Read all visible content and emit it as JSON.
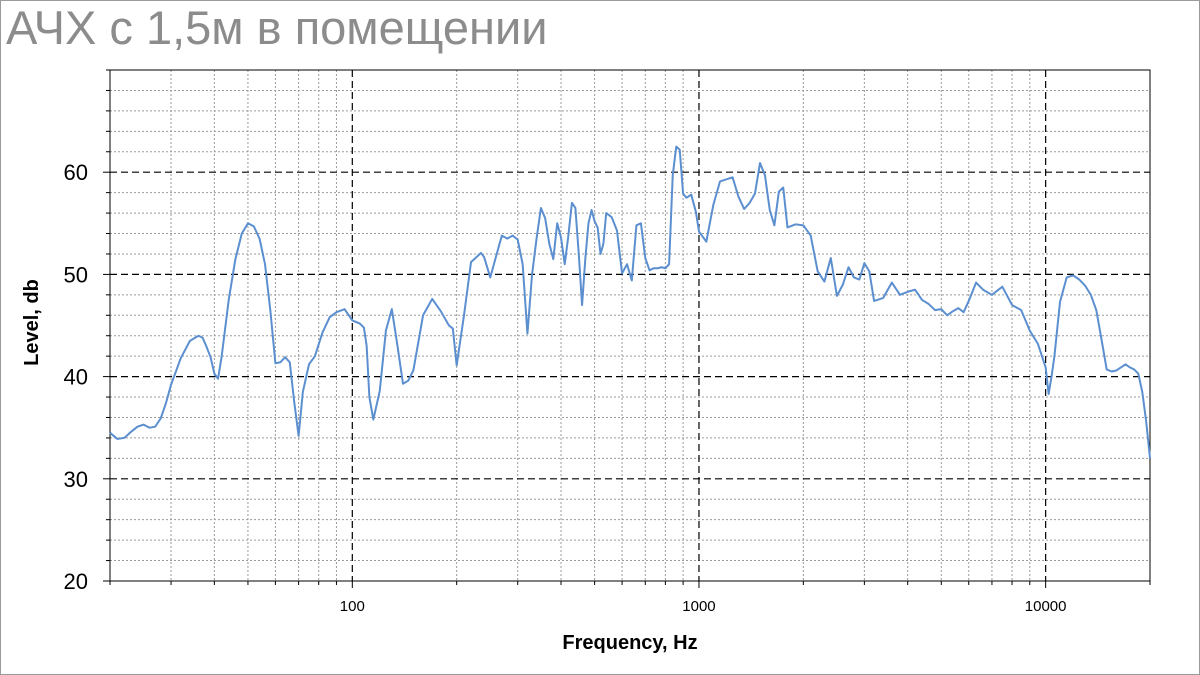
{
  "chart_data": {
    "type": "line",
    "title": "АЧХ с 1,5м в помещении",
    "xlabel": "Frequency, Hz",
    "ylabel": "Level, db",
    "xscale": "log",
    "xlim": [
      20,
      20000
    ],
    "ylim": [
      20,
      70
    ],
    "x_ticks": [
      100,
      1000,
      10000
    ],
    "x_tick_labels": [
      "100",
      "1000",
      "10000"
    ],
    "y_ticks": [
      20,
      30,
      40,
      50,
      60
    ],
    "y_tick_labels": [
      "20",
      "30",
      "40",
      "50",
      "60"
    ],
    "grid": true,
    "line_color": "#5b8fd0",
    "series": [
      {
        "x": [
          20,
          21,
          22,
          23,
          24,
          25,
          26,
          27,
          28,
          29,
          30,
          32,
          34,
          36,
          37,
          38,
          39,
          40,
          41,
          42,
          44,
          46,
          48,
          50,
          52,
          54,
          56,
          58,
          60,
          62,
          64,
          66,
          68,
          70,
          72,
          75,
          78,
          82,
          86,
          90,
          95,
          100,
          105,
          108,
          110,
          112,
          115,
          120,
          125,
          130,
          135,
          140,
          145,
          150,
          160,
          170,
          180,
          190,
          195,
          200,
          210,
          220,
          235,
          240,
          250,
          260,
          270,
          280,
          290,
          300,
          310,
          320,
          330,
          340,
          350,
          360,
          370,
          380,
          390,
          400,
          410,
          420,
          430,
          440,
          450,
          460,
          470,
          480,
          490,
          500,
          510,
          520,
          530,
          540,
          560,
          580,
          600,
          620,
          640,
          660,
          680,
          700,
          720,
          740,
          760,
          780,
          800,
          820,
          840,
          860,
          880,
          900,
          920,
          950,
          980,
          1000,
          1050,
          1100,
          1150,
          1200,
          1250,
          1300,
          1350,
          1400,
          1450,
          1500,
          1550,
          1600,
          1650,
          1700,
          1750,
          1800,
          1900,
          2000,
          2100,
          2200,
          2300,
          2400,
          2500,
          2600,
          2700,
          2800,
          2900,
          3000,
          3100,
          3200,
          3400,
          3600,
          3800,
          4000,
          4200,
          4400,
          4600,
          4800,
          5000,
          5200,
          5400,
          5600,
          5800,
          6000,
          6300,
          6600,
          7000,
          7500,
          8000,
          8500,
          9000,
          9500,
          10000,
          10200,
          10400,
          10600,
          11000,
          11500,
          12000,
          12500,
          13000,
          13500,
          14000,
          14500,
          15000,
          15500,
          16000,
          17000,
          17500,
          18000,
          18500,
          19000,
          19500,
          20000
        ],
        "y": [
          34.5,
          33.9,
          34.0,
          34.6,
          35.1,
          35.3,
          35.0,
          35.1,
          35.9,
          37.4,
          39.2,
          41.8,
          43.5,
          44.0,
          43.8,
          42.9,
          41.9,
          40.3,
          39.8,
          42.0,
          47.5,
          51.5,
          54.0,
          55.0,
          54.7,
          53.5,
          51.0,
          46.5,
          41.3,
          41.4,
          41.9,
          41.4,
          37.5,
          34.2,
          38.5,
          41.2,
          42.0,
          44.3,
          45.8,
          46.3,
          46.6,
          45.5,
          45.2,
          44.8,
          43.0,
          38.0,
          35.8,
          38.6,
          44.5,
          46.6,
          43.0,
          39.3,
          39.6,
          40.6,
          46.0,
          47.6,
          46.4,
          45.0,
          44.7,
          41.1,
          46.0,
          51.2,
          52.1,
          51.7,
          49.7,
          51.8,
          53.8,
          53.5,
          53.8,
          53.4,
          51.0,
          44.2,
          50.0,
          53.5,
          56.5,
          55.5,
          53.0,
          51.5,
          55.0,
          53.6,
          51.0,
          53.8,
          57.0,
          56.5,
          52.0,
          47.0,
          51.5,
          55.0,
          56.3,
          55.2,
          54.6,
          52.0,
          53.0,
          56.0,
          55.6,
          54.3,
          50.1,
          51.0,
          49.4,
          54.8,
          55.0,
          51.6,
          50.4,
          50.6,
          50.6,
          50.7,
          50.6,
          51.0,
          59.7,
          62.5,
          62.2,
          57.9,
          57.5,
          57.8,
          56.1,
          54.2,
          53.2,
          56.8,
          59.1,
          59.3,
          59.5,
          57.6,
          56.4,
          57.0,
          57.9,
          60.9,
          59.7,
          56.3,
          54.8,
          58.1,
          58.5,
          54.6,
          54.9,
          54.8,
          53.8,
          50.3,
          49.3,
          51.6,
          47.9,
          49.0,
          50.7,
          49.7,
          49.5,
          51.1,
          50.3,
          47.4,
          47.7,
          49.2,
          48.0,
          48.3,
          48.5,
          47.5,
          47.1,
          46.5,
          46.6,
          46.0,
          46.4,
          46.7,
          46.3,
          47.4,
          49.2,
          48.5,
          48.0,
          48.8,
          47.0,
          46.5,
          44.5,
          43.2,
          40.9,
          38.3,
          40.0,
          42.0,
          47.3,
          49.7,
          49.9,
          49.5,
          48.9,
          48.0,
          46.5,
          43.6,
          40.7,
          40.5,
          40.6,
          41.2,
          40.9,
          40.7,
          40.3,
          38.5,
          35.6,
          32.0
        ]
      }
    ]
  }
}
